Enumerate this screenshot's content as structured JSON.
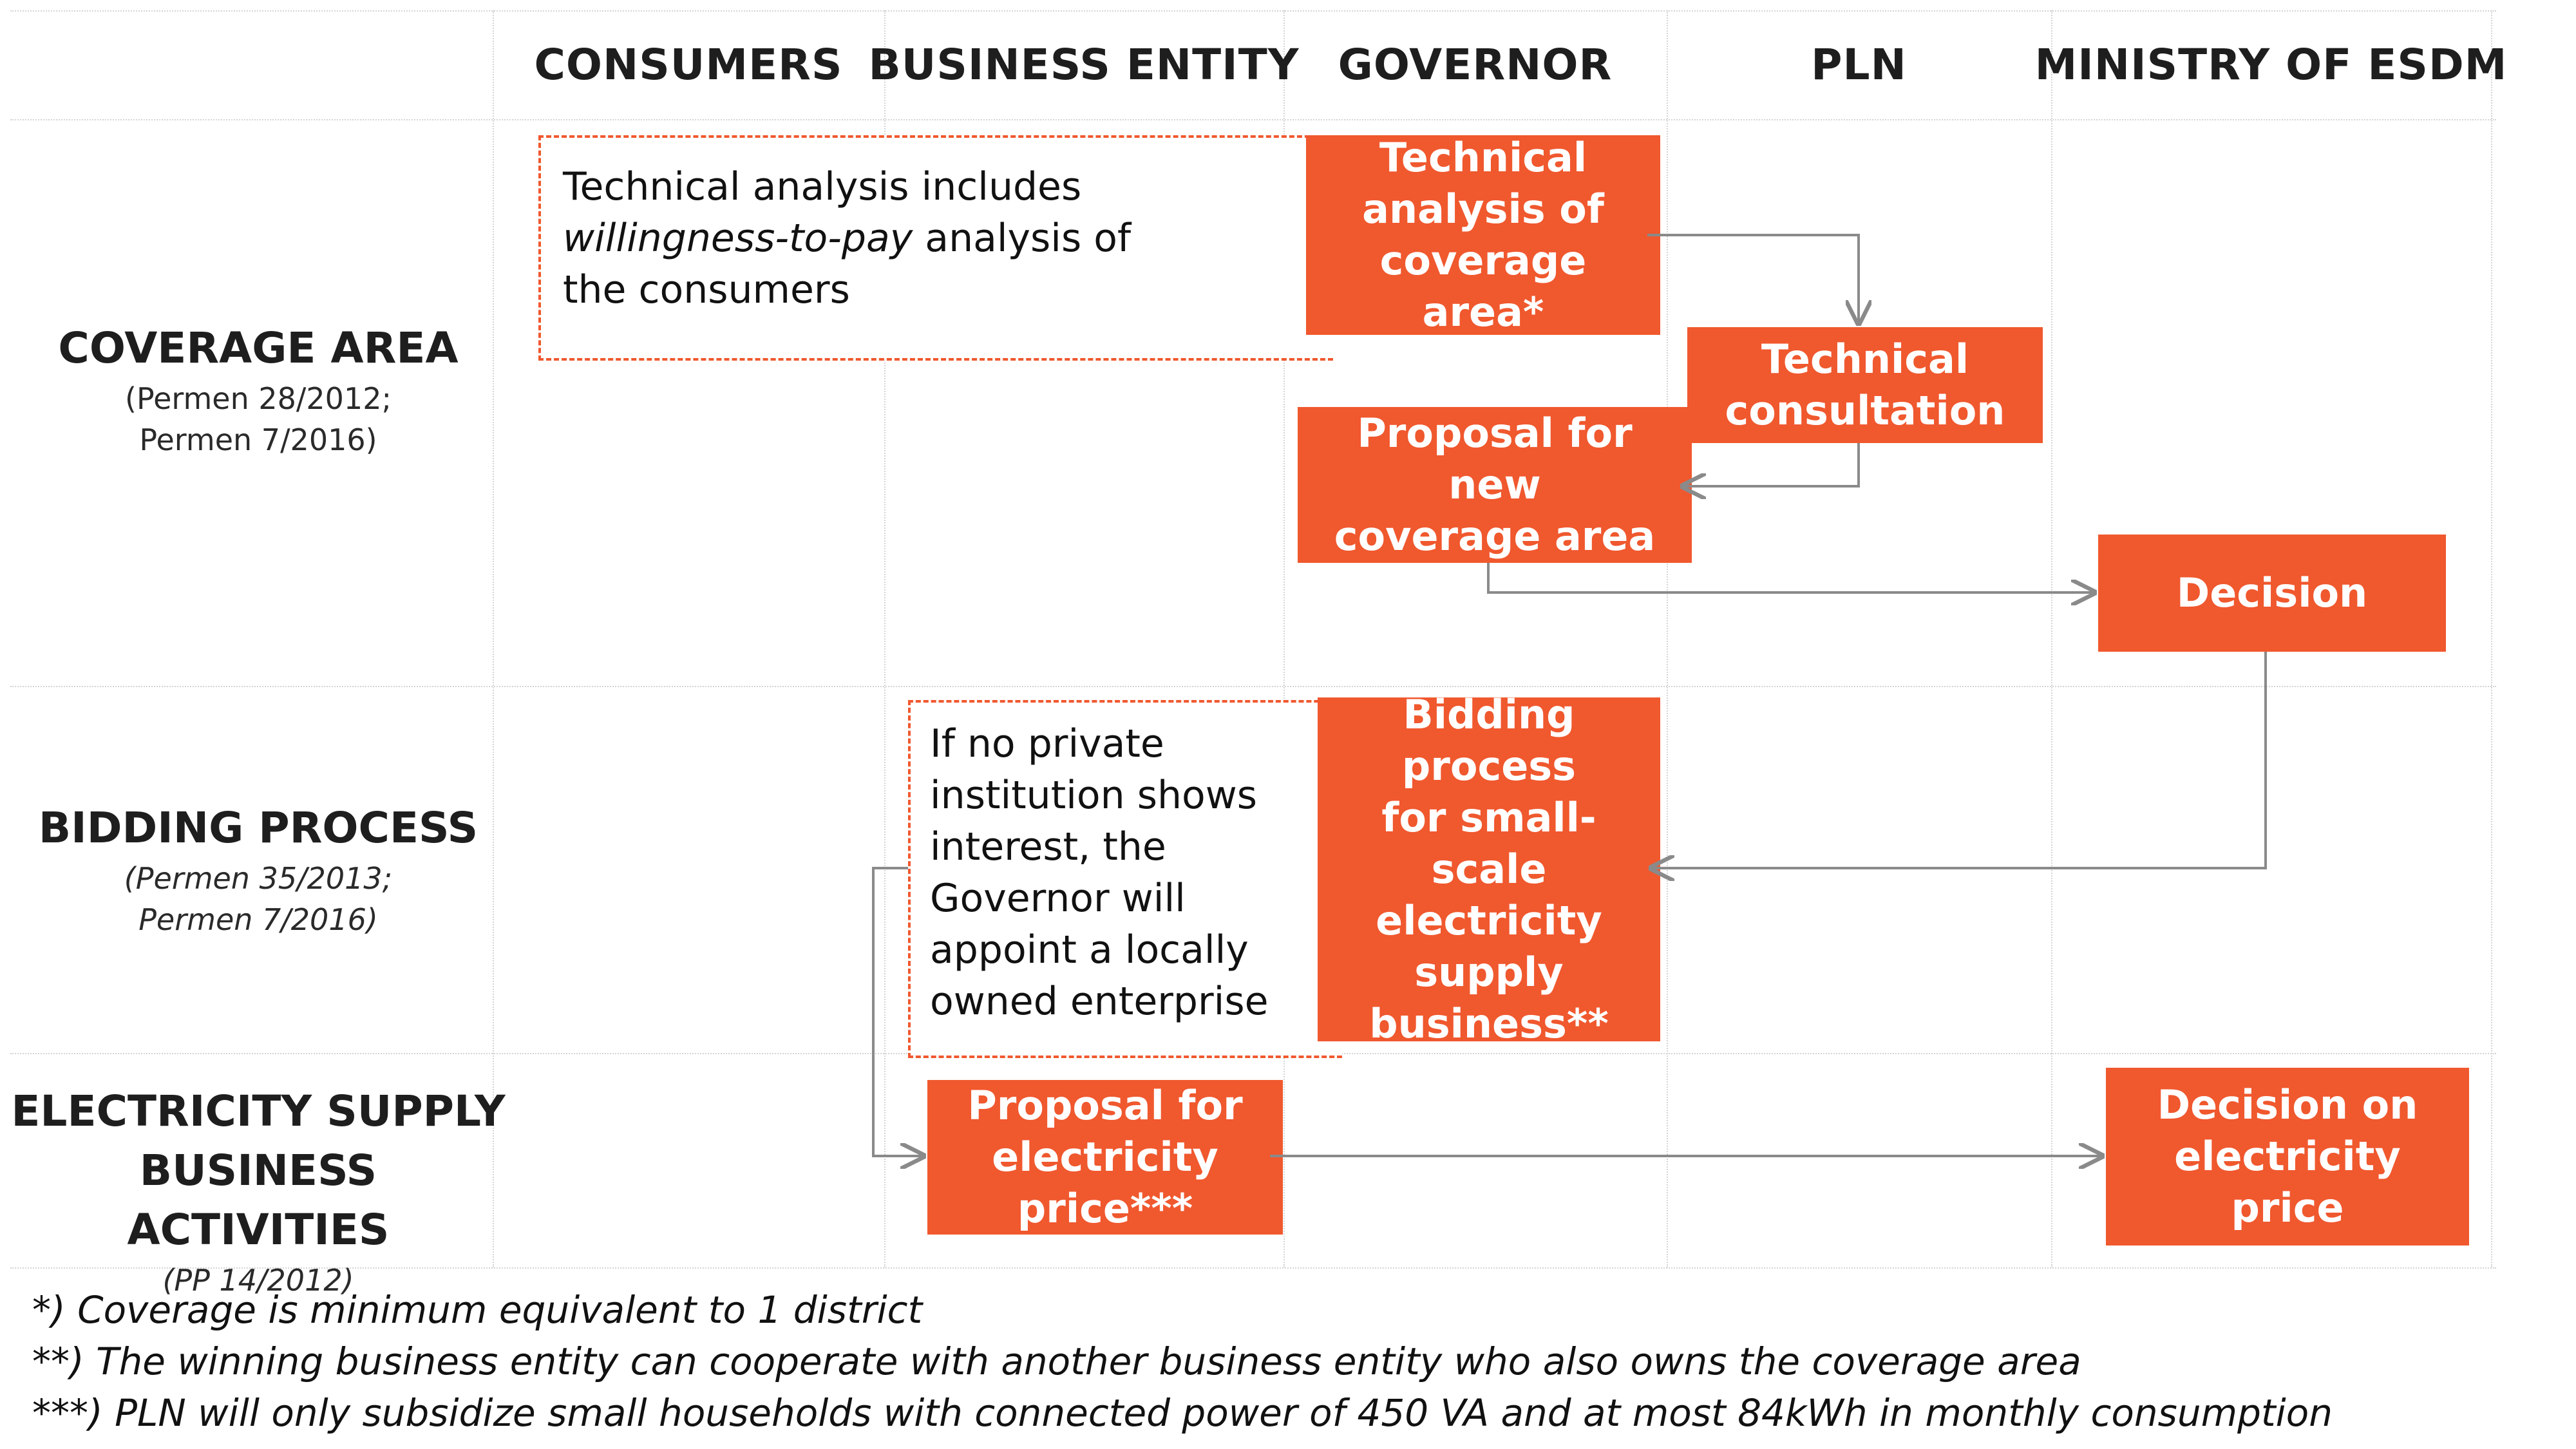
{
  "columns": [
    "CONSUMERS",
    "BUSINESS ENTITY",
    "GOVERNOR",
    "PLN",
    "MINISTRY OF ESDM"
  ],
  "rows": {
    "coverage": {
      "title": "COVERAGE AREA",
      "sub1": "(Permen 28/2012;",
      "sub2": "Permen 7/2016)"
    },
    "bidding": {
      "title": "BIDDING PROCESS",
      "sub1": "(Permen 35/2013;",
      "sub2": "Permen 7/2016)"
    },
    "supply": {
      "title1": "ELECTRICITY SUPPLY",
      "title2": "BUSINESS ACTIVITIES",
      "sub1": "(PP 14/2012)"
    }
  },
  "notes": {
    "willingness": {
      "l1": "Technical analysis includes",
      "l2_em": "willingness-to-pay",
      "l2_rest": " analysis of",
      "l3": "the consumers"
    },
    "private": {
      "l1": "If no private",
      "l2": "institution shows",
      "l3": "interest, the",
      "l4": "Governor will",
      "l5": "appoint a locally",
      "l6": "owned enterprise"
    }
  },
  "boxes": {
    "technical_analysis": {
      "l1": "Technical",
      "l2": "analysis of",
      "l3": "coverage area*"
    },
    "technical_consultation": {
      "l1": "Technical",
      "l2": "consultation"
    },
    "proposal_coverage": {
      "l1": "Proposal for new",
      "l2": "coverage area"
    },
    "decision": {
      "l1": "Decision"
    },
    "bidding": {
      "l1": "Bidding process",
      "l2": "for small-scale",
      "l3": "electricity",
      "l4": "supply",
      "l5": "business**"
    },
    "proposal_price": {
      "l1": "Proposal for",
      "l2": "electricity",
      "l3": "price***"
    },
    "decision_price": {
      "l1": "Decision on",
      "l2": "electricity price"
    }
  },
  "footnotes": [
    "*) Coverage is minimum equivalent to 1 district",
    "**) The winning business entity can cooperate with another business entity who also owns the coverage area",
    "***) PLN will only subsidize small households with connected power of 450 VA and at most 84kWh in monthly consumption"
  ],
  "colors": {
    "accent": "#f0582e",
    "grid": "#d4d4d4",
    "arrow": "#8a8a8a"
  }
}
